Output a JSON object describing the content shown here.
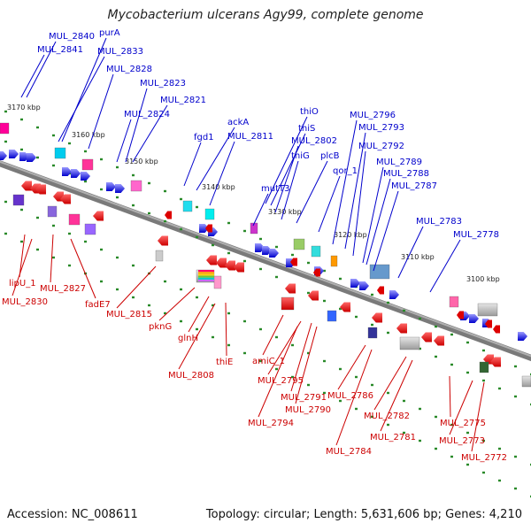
{
  "header": {
    "title": "Mycobacterium ulcerans Agy99, complete genome"
  },
  "footer": {
    "accession": "Accession: NC_008611",
    "summary": "Topology: circular; Length: 5,631,606 bp; Genes: 4,210"
  },
  "scale_labels": [
    "3170 kbp",
    "3160 kbp",
    "3150 kbp",
    "3140 kbp",
    "3130 kbp",
    "3120 kbp",
    "3110 kbp",
    "3100 kbp"
  ],
  "forward_genes": [
    "MUL_2840",
    "MUL_2841",
    "purA",
    "MUL_2833",
    "MUL_2828",
    "MUL_2823",
    "MUL_2821",
    "MUL_2824",
    "ackA",
    "MUL_2811",
    "fgd1",
    "thiO",
    "thiS",
    "MUL_2802",
    "thiG",
    "plcB",
    "mutT3",
    "qor_1",
    "MUL_2796",
    "MUL_2793",
    "MUL_2792",
    "MUL_2789",
    "MUL_2788",
    "MUL_2787",
    "MUL_2783",
    "MUL_2778"
  ],
  "reverse_genes": [
    "lipU_1",
    "MUL_2830",
    "MUL_2827",
    "fadE7",
    "MUL_2815",
    "pknG",
    "glnH",
    "thiE",
    "MUL_2808",
    "amiC_1",
    "MUL_2795",
    "MUL_2791",
    "MUL_2790",
    "MUL_2794",
    "MUL_2786",
    "MUL_2784",
    "MUL_2782",
    "MUL_2781",
    "MUL_2775",
    "MUL_2773",
    "MUL_2772"
  ],
  "colors": {
    "forward": "#0000cc",
    "reverse": "#cc0000",
    "backbone": "#808080",
    "tick": "#228822"
  }
}
